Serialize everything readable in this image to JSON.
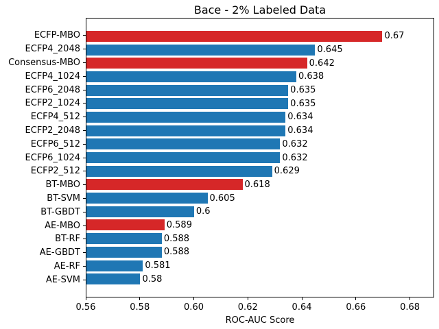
{
  "chart_data": {
    "type": "bar",
    "orientation": "horizontal",
    "title": "Bace - 2% Labeled Data",
    "xlabel": "ROC-AUC Score",
    "ylabel": "",
    "xlim": [
      0.56,
      0.689
    ],
    "grid": false,
    "legend": "none",
    "categories": [
      "ECFP-MBO",
      "ECFP4_2048",
      "Consensus-MBO",
      "ECFP4_1024",
      "ECFP6_2048",
      "ECFP2_1024",
      "ECFP4_512",
      "ECFP2_2048",
      "ECFP6_512",
      "ECFP6_1024",
      "ECFP2_512",
      "BT-MBO",
      "BT-SVM",
      "BT-GBDT",
      "AE-MBO",
      "BT-RF",
      "AE-GBDT",
      "AE-RF",
      "AE-SVM"
    ],
    "values": [
      0.67,
      0.645,
      0.642,
      0.638,
      0.635,
      0.635,
      0.634,
      0.634,
      0.632,
      0.632,
      0.629,
      0.618,
      0.605,
      0.6,
      0.589,
      0.588,
      0.588,
      0.581,
      0.58
    ],
    "value_labels": [
      "0.67",
      "0.645",
      "0.642",
      "0.638",
      "0.635",
      "0.635",
      "0.634",
      "0.634",
      "0.632",
      "0.632",
      "0.629",
      "0.618",
      "0.605",
      "0.6",
      "0.589",
      "0.588",
      "0.588",
      "0.581",
      "0.58"
    ],
    "bar_colors": [
      "#d62728",
      "#1f77b4",
      "#d62728",
      "#1f77b4",
      "#1f77b4",
      "#1f77b4",
      "#1f77b4",
      "#1f77b4",
      "#1f77b4",
      "#1f77b4",
      "#1f77b4",
      "#d62728",
      "#1f77b4",
      "#1f77b4",
      "#d62728",
      "#1f77b4",
      "#1f77b4",
      "#1f77b4",
      "#1f77b4"
    ],
    "highlight_color": "#d62728",
    "default_color": "#1f77b4",
    "xticks": [
      0.56,
      0.58,
      0.6,
      0.62,
      0.64,
      0.66,
      0.68
    ],
    "xtick_labels": [
      "0.56",
      "0.58",
      "0.60",
      "0.62",
      "0.64",
      "0.66",
      "0.68"
    ]
  }
}
